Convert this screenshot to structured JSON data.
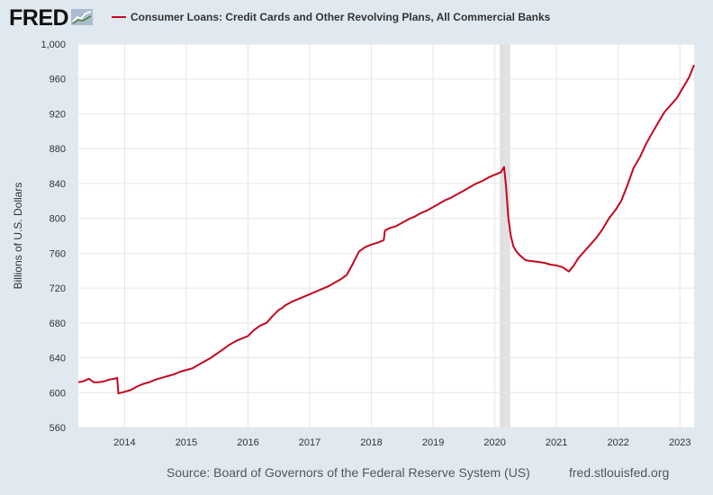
{
  "header": {
    "logo_text": "FRED",
    "logo_icon": "line-chart-icon",
    "legend_label": "Consumer Loans: Credit Cards and Other Revolving Plans, All Commercial Banks"
  },
  "footer": {
    "source": "Source: Board of Governors of the Federal Reserve System (US)",
    "link": "fred.stlouisfed.org"
  },
  "colors": {
    "series": "#c4071f",
    "background": "#e1e9f0",
    "plot_bg": "#ffffff",
    "recession": "#e1e1e1",
    "grid": "#e6e6e6"
  },
  "chart_data": {
    "type": "line",
    "title": "",
    "xlabel": "",
    "ylabel": "Billions of U.S. Dollars",
    "xlim": [
      2013.25,
      2023.23
    ],
    "ylim": [
      560,
      1000
    ],
    "y_ticks": [
      560,
      600,
      640,
      680,
      720,
      760,
      800,
      840,
      880,
      920,
      960,
      1000
    ],
    "y_tick_labels": [
      "560",
      "600",
      "640",
      "680",
      "720",
      "760",
      "800",
      "840",
      "880",
      "920",
      "960",
      "1,000"
    ],
    "x_ticks": [
      2014,
      2015,
      2016,
      2017,
      2018,
      2019,
      2020,
      2021,
      2022,
      2023
    ],
    "x_tick_labels": [
      "2014",
      "2015",
      "2016",
      "2017",
      "2018",
      "2019",
      "2020",
      "2021",
      "2022",
      "2023"
    ],
    "grid": true,
    "legend": "top-left",
    "recession_shading": [
      [
        2020.08,
        2020.25
      ]
    ],
    "series": [
      {
        "name": "Consumer Loans: Credit Cards and Other Revolving Plans, All Commercial Banks",
        "color": "#c4071f",
        "x": [
          2013.25,
          2013.33,
          2013.42,
          2013.5,
          2013.58,
          2013.67,
          2013.75,
          2013.83,
          2013.88,
          2013.9,
          2014.0,
          2014.1,
          2014.2,
          2014.3,
          2014.4,
          2014.5,
          2014.6,
          2014.7,
          2014.8,
          2014.9,
          2015.0,
          2015.1,
          2015.2,
          2015.3,
          2015.4,
          2015.5,
          2015.6,
          2015.7,
          2015.8,
          2015.9,
          2016.0,
          2016.1,
          2016.2,
          2016.3,
          2016.4,
          2016.5,
          2016.55,
          2016.6,
          2016.7,
          2016.8,
          2016.9,
          2017.0,
          2017.1,
          2017.2,
          2017.3,
          2017.4,
          2017.5,
          2017.6,
          2017.7,
          2017.75,
          2017.8,
          2017.9,
          2018.0,
          2018.1,
          2018.2,
          2018.22,
          2018.3,
          2018.4,
          2018.5,
          2018.6,
          2018.7,
          2018.8,
          2018.9,
          2019.0,
          2019.1,
          2019.2,
          2019.3,
          2019.4,
          2019.5,
          2019.6,
          2019.7,
          2019.8,
          2019.9,
          2020.0,
          2020.1,
          2020.15,
          2020.18,
          2020.22,
          2020.26,
          2020.3,
          2020.35,
          2020.4,
          2020.5,
          2020.6,
          2020.7,
          2020.8,
          2020.9,
          2021.0,
          2021.1,
          2021.2,
          2021.28,
          2021.35,
          2021.45,
          2021.55,
          2021.65,
          2021.75,
          2021.85,
          2021.95,
          2022.05,
          2022.15,
          2022.25,
          2022.35,
          2022.45,
          2022.55,
          2022.65,
          2022.75,
          2022.85,
          2022.95,
          2023.05,
          2023.15,
          2023.23
        ],
        "y": [
          612,
          613,
          616,
          612,
          612,
          613,
          615,
          616,
          617,
          599,
          601,
          603,
          607,
          610,
          612,
          615,
          617,
          619,
          621,
          624,
          626,
          628,
          632,
          636,
          640,
          645,
          650,
          655,
          659,
          662,
          665,
          672,
          677,
          680,
          688,
          695,
          697,
          700,
          704,
          707,
          710,
          713,
          716,
          719,
          722,
          726,
          730,
          735,
          748,
          755,
          762,
          767,
          770,
          772,
          775,
          786,
          789,
          791,
          795,
          799,
          802,
          806,
          809,
          813,
          817,
          821,
          824,
          828,
          832,
          836,
          840,
          843,
          847,
          850,
          853,
          859,
          838,
          800,
          780,
          768,
          762,
          758,
          752,
          751,
          750,
          749,
          747,
          746,
          744,
          739,
          746,
          754,
          762,
          770,
          778,
          788,
          800,
          809,
          820,
          838,
          858,
          870,
          885,
          898,
          910,
          922,
          930,
          938,
          950,
          962,
          976
        ]
      }
    ]
  }
}
